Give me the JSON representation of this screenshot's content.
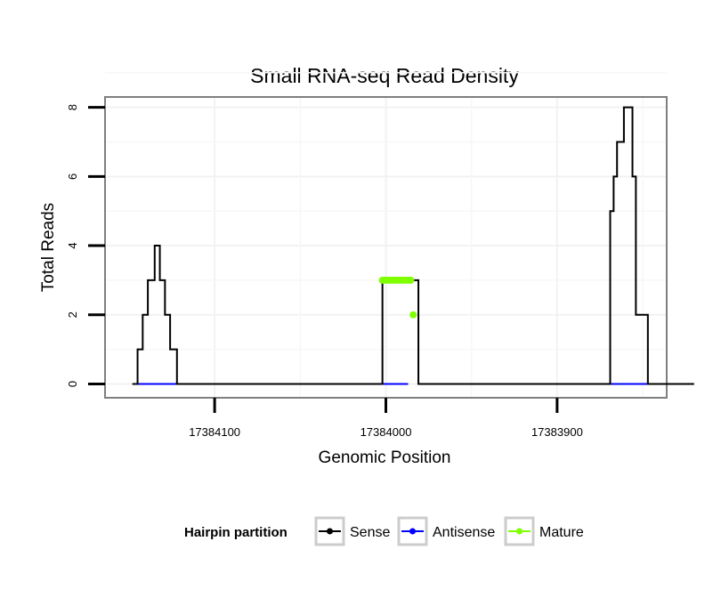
{
  "chart_data": {
    "type": "line",
    "title": "Small RNA-seq Read Density",
    "xlabel": "Genomic Position",
    "ylabel": "Total Reads",
    "x_reversed": true,
    "xlim": [
      17384164,
      17383836
    ],
    "ylim": [
      -0.4,
      8.3
    ],
    "x_ticks": [
      17384100,
      17384000,
      17383900
    ],
    "x_tick_labels": [
      "17384100",
      "17384000",
      "17383900"
    ],
    "y_ticks": [
      0,
      2,
      4,
      6,
      8
    ],
    "y_tick_labels": [
      "0",
      "2",
      "4",
      "6",
      "8"
    ],
    "grid": true,
    "legend": {
      "title": "Hairpin partition",
      "position": "bottom",
      "entries": [
        {
          "label": "Sense",
          "color": "#000000"
        },
        {
          "label": "Antisense",
          "color": "#0000ff"
        },
        {
          "label": "Mature",
          "color": "#7fff00"
        }
      ]
    },
    "series": [
      {
        "name": "Sense",
        "color": "#000000",
        "style": "step",
        "x": [
          17384148,
          17384145,
          17384142,
          17384139,
          17384135,
          17384132,
          17384129,
          17384126,
          17384122,
          17384119,
          17384116,
          17384113,
          17384110,
          17384002,
          17383981,
          17383870,
          17383869,
          17383867,
          17383865,
          17383861,
          17383859,
          17383856,
          17383854,
          17383847,
          17383839,
          17383820
        ],
        "values": [
          0,
          1,
          2,
          3,
          4,
          3,
          2,
          1,
          0,
          0,
          0,
          0,
          0,
          3,
          0,
          0,
          5,
          6,
          7,
          8,
          8,
          6,
          2,
          0,
          0,
          0
        ]
      },
      {
        "name": "Antisense",
        "color": "#0000ff",
        "style": "segments",
        "segments": [
          [
            17384148,
            17384107
          ],
          [
            17384003,
            17383987
          ],
          [
            17383870,
            17383841
          ]
        ]
      },
      {
        "name": "Mature",
        "color": "#7fff00",
        "style": "points",
        "x": [
          17384002,
          17384000.5,
          17383999,
          17383997.5,
          17383996,
          17383994.5,
          17383993,
          17383991.5,
          17383990,
          17383988.5,
          17383987,
          17383985.5,
          17383984
        ],
        "values": [
          3,
          3,
          3,
          3,
          3,
          3,
          3,
          3,
          3,
          3,
          3,
          3,
          2
        ]
      }
    ]
  }
}
